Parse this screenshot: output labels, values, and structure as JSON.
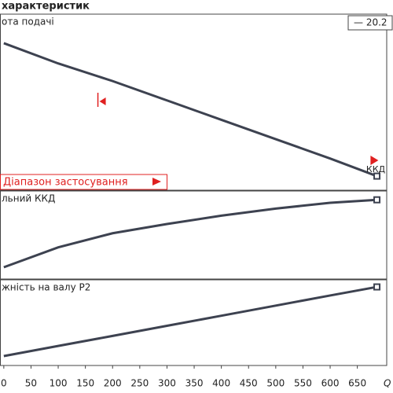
{
  "chart_data": {
    "type": "line",
    "title": "характеристик",
    "x_label": "Q /",
    "xlim": [
      -7,
      704
    ],
    "xticks": [
      0,
      50,
      100,
      150,
      200,
      250,
      300,
      350,
      400,
      450,
      500,
      550,
      600,
      650
    ],
    "x": [
      0,
      100,
      200,
      300,
      400,
      500,
      600,
      686
    ],
    "range_label": "Діапазон застосування",
    "range_markers": [
      173,
      680
    ],
    "annotation": "ККД",
    "panels": [
      {
        "label": "ота подачі",
        "ylim": [
          0,
          100
        ],
        "series": [
          {
            "name": "— 20.2",
            "color": "#3d4250",
            "values": [
              83.5,
              72,
              62,
              51,
              40,
              29,
              18,
              8
            ]
          }
        ]
      },
      {
        "label": "льний ККД",
        "ylim": [
          0,
          100
        ],
        "series": [
          {
            "color": "#3d4250",
            "values": [
              13.4,
              36,
              52,
              62.5,
              72,
              80,
              86.6,
              90
            ]
          }
        ]
      },
      {
        "label": "жність на валу P2",
        "ylim": [
          0,
          100
        ],
        "series": [
          {
            "color": "#3d4250",
            "values": [
              11,
              22.8,
              34.5,
              46.3,
              58.1,
              69.9,
              81.7,
              91.7
            ]
          }
        ]
      }
    ]
  }
}
